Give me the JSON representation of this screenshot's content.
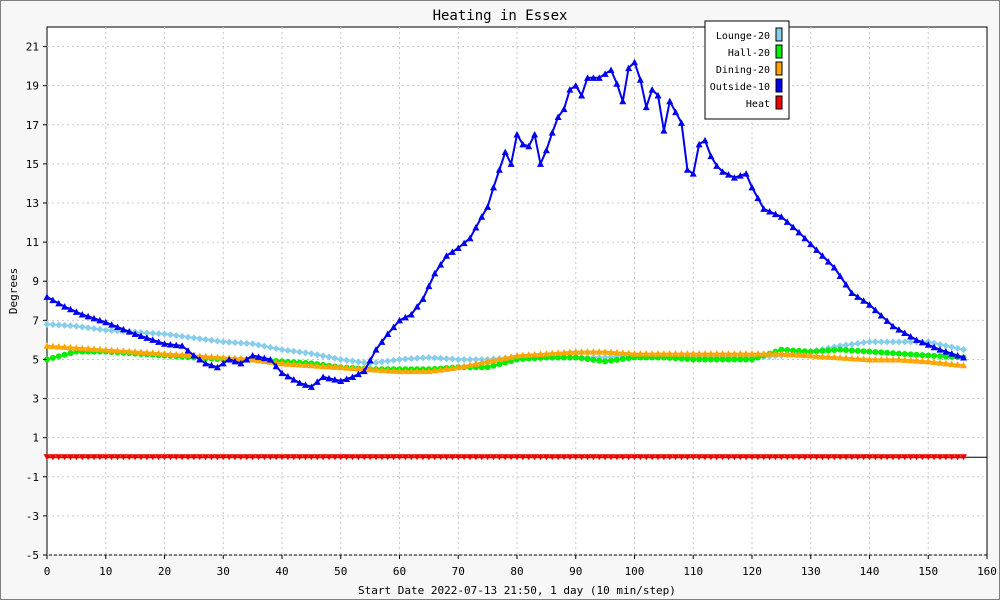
{
  "chart_data": {
    "type": "line",
    "title": "Heating in Essex",
    "xlabel": "Start Date 2022-07-13 21:50, 1 day (10 min/step)",
    "ylabel": "Degrees",
    "xlim": [
      0,
      160
    ],
    "ylim": [
      -5,
      22
    ],
    "xticks": [
      0,
      10,
      20,
      30,
      40,
      50,
      60,
      70,
      80,
      90,
      100,
      110,
      120,
      130,
      140,
      150,
      160
    ],
    "yticks": [
      -5,
      -3,
      -1,
      1,
      3,
      5,
      7,
      9,
      11,
      13,
      15,
      17,
      19,
      21
    ],
    "grid": true,
    "legend_position": "top-right",
    "series": [
      {
        "name": "Lounge-20",
        "color": "#87ceeb",
        "marker": "diamond",
        "x": [
          0,
          5,
          10,
          15,
          20,
          25,
          30,
          35,
          40,
          45,
          50,
          55,
          60,
          65,
          70,
          75,
          80,
          85,
          90,
          95,
          100,
          105,
          110,
          115,
          120,
          125,
          130,
          135,
          140,
          145,
          150,
          156
        ],
        "y": [
          6.8,
          6.7,
          6.5,
          6.4,
          6.3,
          6.1,
          5.9,
          5.8,
          5.5,
          5.3,
          5.0,
          4.8,
          5.0,
          5.1,
          5.0,
          5.0,
          5.1,
          5.1,
          5.1,
          5.1,
          5.2,
          5.1,
          5.1,
          5.1,
          5.1,
          5.2,
          5.4,
          5.7,
          5.9,
          5.9,
          5.9,
          5.5
        ]
      },
      {
        "name": "Hall-20",
        "color": "#00ee00",
        "marker": "circle",
        "x": [
          0,
          5,
          10,
          15,
          20,
          25,
          30,
          35,
          40,
          45,
          50,
          55,
          60,
          65,
          70,
          75,
          80,
          85,
          90,
          95,
          100,
          105,
          110,
          115,
          120,
          125,
          130,
          135,
          140,
          145,
          150,
          156
        ],
        "y": [
          5.0,
          5.4,
          5.4,
          5.3,
          5.2,
          5.1,
          5.0,
          5.0,
          4.9,
          4.8,
          4.6,
          4.5,
          4.5,
          4.5,
          4.6,
          4.6,
          5.0,
          5.1,
          5.1,
          4.9,
          5.1,
          5.1,
          5.0,
          5.0,
          5.0,
          5.5,
          5.4,
          5.5,
          5.4,
          5.3,
          5.2,
          5.1
        ]
      },
      {
        "name": "Dining-20",
        "color": "#ffa500",
        "marker": "triangle",
        "x": [
          0,
          5,
          10,
          15,
          20,
          25,
          30,
          35,
          40,
          45,
          50,
          55,
          60,
          65,
          70,
          75,
          80,
          85,
          90,
          95,
          100,
          105,
          110,
          115,
          120,
          125,
          130,
          135,
          140,
          145,
          150,
          156
        ],
        "y": [
          5.7,
          5.6,
          5.5,
          5.4,
          5.3,
          5.2,
          5.1,
          5.0,
          4.8,
          4.7,
          4.6,
          4.5,
          4.4,
          4.4,
          4.6,
          4.9,
          5.2,
          5.3,
          5.4,
          5.4,
          5.3,
          5.3,
          5.3,
          5.3,
          5.3,
          5.3,
          5.2,
          5.1,
          5.0,
          5.0,
          4.9,
          4.7
        ]
      },
      {
        "name": "Outside-10",
        "color": "#0000ee",
        "marker": "triangle",
        "x": [
          0,
          3,
          6,
          10,
          15,
          20,
          23,
          25,
          27,
          29,
          31,
          33,
          35,
          38,
          40,
          43,
          45,
          47,
          50,
          52,
          54,
          56,
          58,
          60,
          62,
          64,
          66,
          68,
          70,
          72,
          74,
          75,
          76,
          77,
          78,
          79,
          80,
          81,
          82,
          83,
          84,
          85,
          86,
          87,
          88,
          89,
          90,
          91,
          92,
          94,
          96,
          97,
          98,
          99,
          100,
          101,
          102,
          103,
          104,
          105,
          106,
          108,
          109,
          110,
          111,
          112,
          113,
          114,
          115,
          117,
          119,
          120,
          122,
          125,
          128,
          131,
          134,
          137,
          140,
          144,
          148,
          152,
          156
        ],
        "y": [
          8.2,
          7.7,
          7.3,
          6.9,
          6.3,
          5.8,
          5.7,
          5.2,
          4.8,
          4.6,
          5.0,
          4.8,
          5.2,
          5.0,
          4.3,
          3.8,
          3.6,
          4.1,
          3.9,
          4.1,
          4.4,
          5.5,
          6.3,
          7.0,
          7.3,
          8.1,
          9.4,
          10.3,
          10.7,
          11.2,
          12.3,
          12.8,
          13.8,
          14.7,
          15.6,
          15.0,
          16.5,
          16.0,
          15.9,
          16.5,
          15.0,
          15.7,
          16.6,
          17.4,
          17.8,
          18.8,
          19.0,
          18.5,
          19.4,
          19.4,
          19.8,
          19.1,
          18.2,
          19.9,
          20.2,
          19.3,
          17.9,
          18.8,
          18.5,
          16.7,
          18.2,
          17.1,
          14.7,
          14.5,
          16.0,
          16.2,
          15.4,
          14.9,
          14.6,
          14.3,
          14.5,
          13.8,
          12.7,
          12.3,
          11.5,
          10.6,
          9.7,
          8.4,
          7.8,
          6.7,
          6.0,
          5.5,
          5.1
        ]
      },
      {
        "name": "Heat",
        "color": "#ee0000",
        "marker": "triangle-down",
        "x": [
          0,
          156
        ],
        "y": [
          0.0,
          0.0
        ]
      }
    ]
  }
}
